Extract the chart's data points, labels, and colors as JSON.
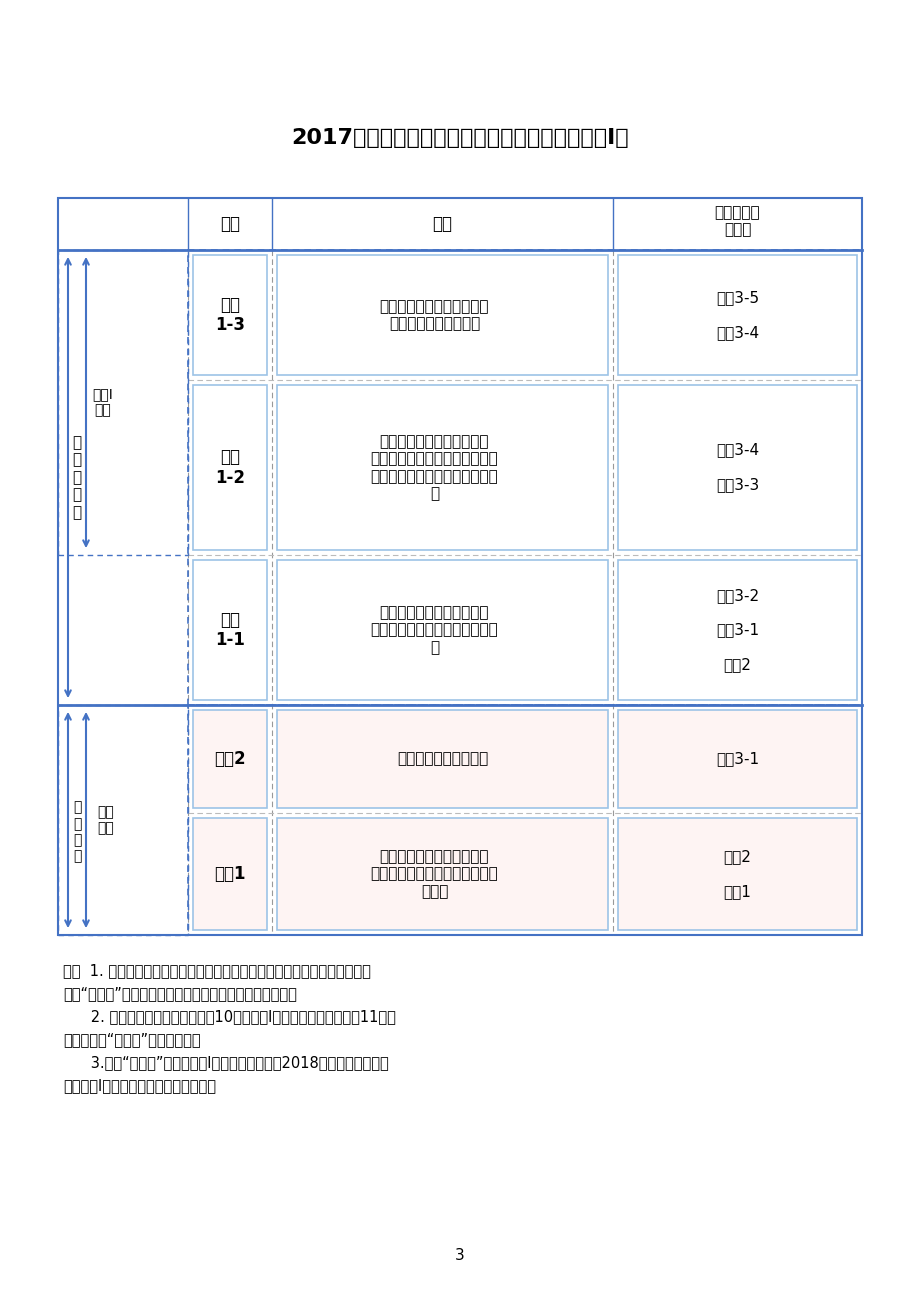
{
  "title": "2017年高一新生高中物理课程结构（必修和选修Ⅰ）",
  "bg_color": "#ffffff",
  "note_line1": "注：  1. 上图中每个模块的主题源于《普通高中物理课程标准修订版》（以下",
  "note_line2": "简称“修订版”）的模块内容，但有些主题的位置有所移动。",
  "note_line3": "      2. 必修课程中有学生必做实验10项，选修Ⅰ课程中有学生必做实验11项，",
  "note_line4": "具体内容与“修订版”的规定相同。",
  "note_line5": "      3.若与“修订版”配套的选修Ⅰ系列课程的教科晨2018年秋季出版，则建",
  "note_line6": "议在选修Ⅰ课程的教学中使用新教科书。",
  "page_num": "3",
  "solid_blue": "#4472C4",
  "light_blue_border": "#9DC3E6",
  "white_fill": "#FFFFFF",
  "header_module": "模块",
  "header_theme": "主题",
  "header_old": "原教科书中\n的模块",
  "row1_module": "选修\n1-3",
  "row1_theme": "光及其应用，动量与动量守\n恒定律，原子与原子核",
  "row1_old": "选修3-5\n\n选修3-4",
  "row2_module": "选修\n1-2",
  "row2_theme": "固体、液体和气体，热力学\n定律，能源与可持续发展，机械\n振动与机械波，电磁振荡与电磁\n波",
  "row2_old": "选修3-4\n\n选修3-3",
  "row3_module": "选修\n1-1",
  "row3_theme": "曲线运动与万有引力定律，\n磁场，电磁感应及其应用，传感\n器",
  "row3_old": "选修3-2\n\n选修3-1\n\n必修2",
  "row4_module": "必修2",
  "row4_theme": "静电场，电路及其应用",
  "row4_old": "选修3-1",
  "row5_module": "必修1",
  "row5_theme": "机械运动与物理模型，相互\n作用与运动定律，机械能及其守\n恒定律",
  "row5_old": "必修2\n\n必修1",
  "left_xuanze": "选\n拔\n性\n考\n试",
  "left_xuanxiu": "选修Ⅰ\n课程",
  "left_biye": "毕\n业\n考\n试",
  "left_bixiu": "必修\n课程"
}
